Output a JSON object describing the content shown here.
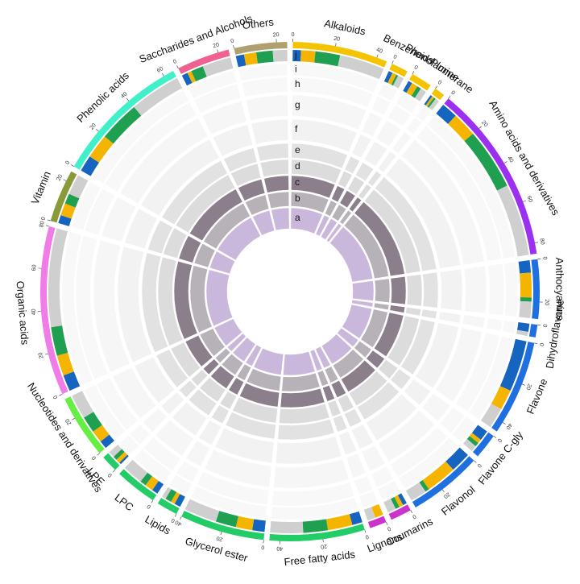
{
  "chart_data": {
    "type": "circos",
    "tracks": [
      "a",
      "b",
      "c",
      "d",
      "e",
      "f",
      "g",
      "h",
      "i",
      "j"
    ],
    "track_j_colors": [
      "#1565c0",
      "#f5b400",
      "#1ea050",
      "#cfcfcf"
    ],
    "sectors": [
      {
        "name": "Alkaloids",
        "color": "#f5c400",
        "size": 45,
        "ticks": [
          0,
          20,
          40
        ],
        "track_j": [
          4,
          7,
          12,
          22
        ]
      },
      {
        "name": "Benzenoids",
        "color": "#f5c400",
        "size": 8,
        "ticks": [
          0
        ],
        "track_j": [
          2,
          2,
          1,
          3
        ]
      },
      {
        "name": "Phenolamine",
        "color": "#f5c400",
        "size": 10,
        "ticks": [
          0
        ],
        "track_j": [
          2,
          3,
          2,
          3
        ]
      },
      {
        "name": "Plumerane",
        "color": "#f5c400",
        "size": 5,
        "ticks": [
          0
        ],
        "track_j": [
          1,
          1,
          1,
          2
        ]
      },
      {
        "name": "Amino acids and derivatives",
        "color": "#9b30f0",
        "size": 85,
        "ticks": [
          0,
          20,
          40,
          60,
          80
        ],
        "track_j": [
          8,
          12,
          30,
          35
        ]
      },
      {
        "name": "Anthocyanins",
        "color": "#1e6fe0",
        "size": 28,
        "ticks": [
          0,
          20
        ],
        "track_j": [
          6,
          12,
          2,
          8
        ]
      },
      {
        "name": "Dihydroflavone",
        "color": "#1e6fe0",
        "size": 6,
        "ticks": [
          0
        ],
        "track_j": [
          4,
          0,
          0,
          2
        ]
      },
      {
        "name": "Flavone",
        "color": "#1e6fe0",
        "size": 45,
        "ticks": [
          0,
          20,
          40
        ],
        "track_j": [
          25,
          10,
          0,
          10
        ]
      },
      {
        "name": "Flavone C-gly",
        "color": "#1e6fe0",
        "size": 12,
        "ticks": [
          0
        ],
        "track_j": [
          5,
          2,
          2,
          3
        ]
      },
      {
        "name": "Flavonol",
        "color": "#1e6fe0",
        "size": 35,
        "ticks": [
          0,
          20
        ],
        "track_j": [
          10,
          15,
          2,
          8
        ]
      },
      {
        "name": "Coumarins",
        "color": "#cc33cc",
        "size": 10,
        "ticks": [
          0
        ],
        "track_j": [
          2,
          2,
          2,
          4
        ]
      },
      {
        "name": "Lignans",
        "color": "#cc33cc",
        "size": 8,
        "ticks": [
          0
        ],
        "track_j": [
          0,
          4,
          0,
          4
        ]
      },
      {
        "name": "Free fatty acids",
        "color": "#22cc66",
        "size": 45,
        "ticks": [
          0,
          20,
          40
        ],
        "track_j": [
          5,
          12,
          12,
          16
        ]
      },
      {
        "name": "Glycerol ester",
        "color": "#22cc66",
        "size": 40,
        "ticks": [
          0,
          20,
          40
        ],
        "track_j": [
          6,
          8,
          10,
          16
        ]
      },
      {
        "name": "Lipids",
        "color": "#22cc66",
        "size": 10,
        "ticks": [
          0
        ],
        "track_j": [
          3,
          2,
          3,
          2
        ]
      },
      {
        "name": "LPC",
        "color": "#22cc66",
        "size": 20,
        "ticks": [
          0
        ],
        "track_j": [
          3,
          4,
          3,
          10
        ]
      },
      {
        "name": "LPE",
        "color": "#22cc66",
        "size": 8,
        "ticks": [
          0
        ],
        "track_j": [
          1,
          2,
          2,
          3
        ]
      },
      {
        "name": "Nucleotides and derivatives",
        "color": "#66ee44",
        "size": 30,
        "ticks": [
          0,
          20
        ],
        "track_j": [
          4,
          6,
          8,
          12
        ]
      },
      {
        "name": "Organic acids",
        "color": "#f07ce8",
        "size": 80,
        "ticks": [
          0,
          20,
          40,
          60,
          80
        ],
        "track_j": [
          8,
          10,
          14,
          48
        ]
      },
      {
        "name": "Vitamin",
        "color": "#8a9a3a",
        "size": 25,
        "ticks": [
          0,
          20
        ],
        "track_j": [
          4,
          6,
          5,
          10
        ]
      },
      {
        "name": "Phenolic acids",
        "color": "#3ff0c8",
        "size": 65,
        "ticks": [
          0,
          20,
          40,
          60
        ],
        "track_j": [
          8,
          12,
          20,
          25
        ]
      },
      {
        "name": "Saccharides and Alcohols",
        "color": "#f06090",
        "size": 25,
        "ticks": [
          0,
          20
        ],
        "track_j": [
          3,
          2,
          6,
          14
        ]
      },
      {
        "name": "Others",
        "color": "#b0a070",
        "size": 25,
        "ticks": [
          0,
          20
        ],
        "track_j": [
          4,
          6,
          8,
          7
        ]
      }
    ]
  }
}
